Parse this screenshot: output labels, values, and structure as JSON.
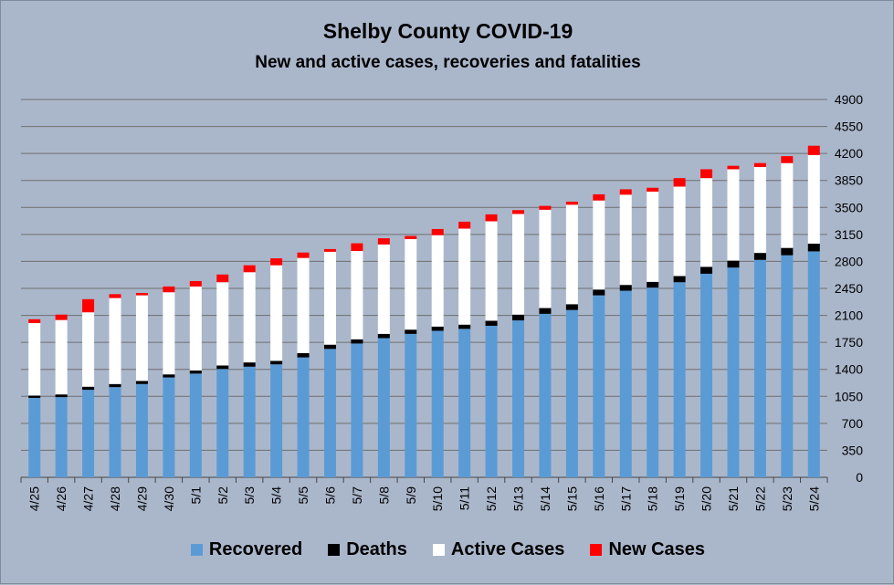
{
  "chart_data": {
    "type": "bar",
    "stacked": true,
    "title": "Shelby County COVID-19",
    "subtitle": "New and active cases, recoveries and fatalities",
    "xlabel": "",
    "ylabel": "",
    "ylim": [
      0,
      4900
    ],
    "yticks": [
      0,
      350,
      700,
      1050,
      1400,
      1750,
      2100,
      2450,
      2800,
      3150,
      3500,
      3850,
      4200,
      4550,
      4900
    ],
    "y_axis_side": "right",
    "grid": true,
    "legend_position": "bottom",
    "categories": [
      "4/25",
      "4/26",
      "4/27",
      "4/28",
      "4/29",
      "4/30",
      "5/1",
      "5/2",
      "5/3",
      "5/4",
      "5/5",
      "5/6",
      "5/7",
      "5/8",
      "5/9",
      "5/10",
      "5/11",
      "5/12",
      "5/13",
      "5/14",
      "5/15",
      "5/16",
      "5/17",
      "5/18",
      "5/19",
      "5/20",
      "5/21",
      "5/22",
      "5/23",
      "5/24"
    ],
    "series": [
      {
        "name": "Recovered",
        "color": "#5b9bd5",
        "values": [
          1030,
          1040,
          1135,
          1170,
          1210,
          1295,
          1345,
          1405,
          1435,
          1465,
          1555,
          1665,
          1735,
          1805,
          1860,
          1900,
          1925,
          1965,
          2035,
          2120,
          2170,
          2360,
          2420,
          2460,
          2530,
          2640,
          2720,
          2820,
          2880,
          2930
        ]
      },
      {
        "name": "Deaths",
        "color": "#000000",
        "values": [
          30,
          35,
          40,
          40,
          40,
          40,
          40,
          45,
          55,
          45,
          55,
          55,
          55,
          55,
          55,
          55,
          55,
          65,
          75,
          75,
          75,
          75,
          75,
          75,
          80,
          90,
          90,
          90,
          95,
          100
        ]
      },
      {
        "name": "Active Cases",
        "color": "#ffffff",
        "values": [
          940,
          965,
          965,
          1115,
          1110,
          1065,
          1090,
          1080,
          1170,
          1240,
          1235,
          1205,
          1145,
          1160,
          1175,
          1185,
          1245,
          1290,
          1305,
          1275,
          1290,
          1155,
          1170,
          1170,
          1160,
          1150,
          1185,
          1115,
          1100,
          1150
        ]
      },
      {
        "name": "New Cases",
        "color": "#ff0000",
        "values": [
          50,
          70,
          170,
          50,
          30,
          75,
          70,
          100,
          90,
          90,
          70,
          35,
          100,
          80,
          40,
          80,
          90,
          90,
          50,
          50,
          40,
          80,
          70,
          50,
          110,
          115,
          45,
          50,
          90,
          120
        ]
      }
    ]
  }
}
